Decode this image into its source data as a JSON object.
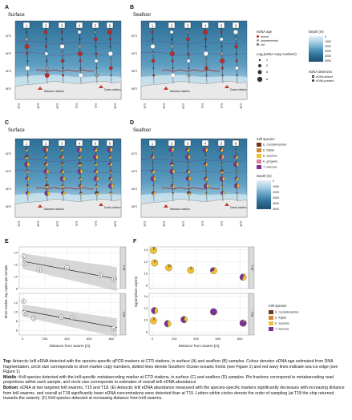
{
  "top": {
    "A": {
      "letter": "A",
      "title": "Surface"
    },
    "B": {
      "letter": "B",
      "title": "Seafloor"
    },
    "legend": {
      "age_title": "eDNA age",
      "age_items": [
        "recent",
        "undetermined",
        "old"
      ],
      "size_title": "Log₂(eDNA copy numbers)",
      "size_items": [
        "2",
        "5",
        "8",
        "8"
      ],
      "depth_title": "Depth (m)",
      "depth_ticks": [
        "0",
        "1000",
        "2000",
        "3000",
        "4000",
        "5000"
      ],
      "detect_title": "eDNA detection",
      "detect_items": [
        "eDNA absent",
        "eDNA present"
      ]
    },
    "transects": [
      "1",
      "2",
      "3",
      "4",
      "5",
      "6"
    ],
    "lat_labels": [
      "62°S",
      "64°S",
      "66°S",
      "68°S"
    ],
    "lon_labels": [
      "55°E",
      "60°E",
      "65°E",
      "70°E",
      "75°E",
      "80°E"
    ],
    "places": {
      "mawson": "Mawson station",
      "davis": "Davis station"
    }
  },
  "middle": {
    "C": {
      "letter": "C",
      "title": "Surface"
    },
    "D": {
      "letter": "D",
      "title": "Seafloor"
    },
    "legend": {
      "species_title": "Krill species",
      "species": [
        "E. crystallorophias",
        "E. frigida",
        "E. superba",
        "E. gregaria",
        "T. macrura"
      ],
      "depth_title": "Depth (m)",
      "depth_ticks": [
        "0",
        "1000",
        "2000",
        "3000",
        "4000",
        "5000"
      ]
    }
  },
  "bottom": {
    "E": {
      "letter": "E",
      "ylabel": "Short marker, log copies per sample",
      "xlabel": "Distance from swarm [m]",
      "facets": [
        "T15",
        "T18"
      ]
    },
    "F": {
      "letter": "F",
      "ylabel": "log(amplicon copies)",
      "xlabel": "Distance from swarm [m]",
      "facets": [
        "T15",
        "T18"
      ],
      "legend_title": "Krill species",
      "species": [
        "E. crystallorophias",
        "E. frigida",
        "E. superba",
        "T. macrura"
      ]
    }
  },
  "colors": {
    "sea_deep": "#2d6f96",
    "sea_mid": "#5b9cc0",
    "sea_light": "#a5cde0",
    "land": "#e9e9e9",
    "front": "#8b2c8e",
    "ice": "#b31b1b",
    "recent": "#c62828",
    "undetermined": "#9a9a9a",
    "old": "#ffffff",
    "sp_crystallorophias": "#6b3a1e",
    "sp_frigida": "#d48a2f",
    "sp_superba": "#f1c232",
    "sp_gregaria": "#e07b9b",
    "sp_macrura": "#7b3294"
  },
  "chart_data": [
    {
      "panel": "E",
      "type": "scatter",
      "xlabel": "Distance from swarm [m]",
      "ylabel": "Short marker, log copies per sample",
      "facets": [
        {
          "name": "T15",
          "ylim": [
            8,
            15
          ],
          "yticks": [
            8,
            10,
            12,
            14
          ],
          "points": [
            {
              "x": 10,
              "y": 13.4,
              "label": "1"
            },
            {
              "x": 15,
              "y": 12.2,
              "label": "2"
            },
            {
              "x": 150,
              "y": 11.1,
              "label": "3"
            },
            {
              "x": 400,
              "y": 11.5,
              "label": "4"
            },
            {
              "x": 700,
              "y": 10.2,
              "label": "5"
            },
            {
              "x": 820,
              "y": 9.6,
              "label": "6"
            }
          ],
          "trend": [
            [
              0,
              12.6
            ],
            [
              850,
              9.6
            ]
          ]
        },
        {
          "name": "T18",
          "ylim": [
            5,
            14
          ],
          "yticks": [
            6,
            8,
            10,
            12
          ],
          "points": [
            {
              "x": 10,
              "y": 12.3,
              "label": "1"
            },
            {
              "x": 20,
              "y": 9.8,
              "label": "2"
            },
            {
              "x": 100,
              "y": 8.6,
              "label": "3"
            },
            {
              "x": 350,
              "y": 8.9,
              "label": "4"
            },
            {
              "x": 450,
              "y": 8.8,
              "label": "5"
            },
            {
              "x": 820,
              "y": 6.4,
              "label": "6"
            }
          ],
          "trend": [
            [
              0,
              10.3
            ],
            [
              850,
              6.6
            ]
          ]
        }
      ],
      "xticks": [
        0,
        200,
        400,
        600,
        800
      ],
      "xlim": [
        -30,
        880
      ]
    },
    {
      "panel": "F",
      "type": "scatter",
      "xlabel": "Distance from swarm [m]",
      "ylabel": "log(amplicon copies)",
      "series": [
        "E. crystallorophias",
        "E. frigida",
        "E. superba",
        "T. macrura"
      ],
      "facets": [
        {
          "name": "T15",
          "ylim": [
            7.5,
            14.5
          ],
          "yticks": [
            8,
            10,
            12,
            14
          ],
          "points": [
            {
              "x": 10,
              "y": 13.9,
              "mix": [
                0,
                0.1,
                0.9,
                0
              ]
            },
            {
              "x": 20,
              "y": 11.8,
              "mix": [
                0,
                0.1,
                0.9,
                0
              ]
            },
            {
              "x": 150,
              "y": 11.0,
              "mix": [
                0,
                0.15,
                0.85,
                0
              ]
            },
            {
              "x": 350,
              "y": 10.6,
              "mix": [
                0,
                0.1,
                0.9,
                0
              ]
            },
            {
              "x": 560,
              "y": 10.5,
              "mix": [
                0,
                0.1,
                0.6,
                0.3
              ]
            },
            {
              "x": 830,
              "y": 9.4,
              "mix": [
                0,
                0.1,
                0.45,
                0.45
              ]
            }
          ]
        },
        {
          "name": "T18",
          "ylim": [
            7.5,
            14.5
          ],
          "yticks": [
            8,
            10,
            12,
            14
          ],
          "points": [
            {
              "x": 10,
              "y": 9.9,
              "mix": [
                0,
                0.1,
                0.9,
                0
              ]
            },
            {
              "x": 20,
              "y": 11.6,
              "mix": [
                0,
                0.05,
                0.45,
                0.5
              ]
            },
            {
              "x": 140,
              "y": 9.4,
              "mix": [
                0,
                0,
                0.5,
                0.5
              ]
            },
            {
              "x": 290,
              "y": 10.1,
              "mix": [
                0,
                0.05,
                0.35,
                0.6
              ]
            },
            {
              "x": 560,
              "y": 11.4,
              "mix": [
                0,
                0,
                0,
                1
              ]
            },
            {
              "x": 830,
              "y": 9.5,
              "mix": [
                0,
                0,
                0.1,
                0.9
              ]
            }
          ]
        }
      ],
      "xticks": [
        0,
        200,
        400,
        600,
        800
      ],
      "xlim": [
        -30,
        880
      ]
    }
  ],
  "caption": {
    "top_label": "Top",
    "top_text": ": Antarctic krill eDNA detected with the species-specific qPCR markers at CTD stations, in surface (A) and seafloor (B) samples. Colour denotes eDNA age estimated from DNA fragmentation, circle size corresponds to short marker copy numbers, dotted lines denote Southern Ocean oceanic fronts (see Figure 1) and red wavy lines indicate sea ice edge (see Figure 1)",
    "middle_label": "Middle",
    "middle_text": ": Krill species detected with the krill-specific metabarcoding marker at CTD stations, in surface (C) and seafloor (D) samples. Pie fractions correspond to metabarcoding read proportions within each sample, and circle size corresponds to estimates of overall krill eDNA abundance",
    "bottom_label": "Bottom",
    "bottom_text": ": eDNA at two targeted krill swarms, T15 and T18. (E) Antarctic krill eDNA abundance measured with the species-specific markers significantly decreases with increasing distance from krill swarms, and overall at T18 significantly lower eDNA concentrations were detected than at T15. Letters within circles denote the order of sampling (at T18 the ship returned towards the swarm). (F) Krill species detected at increasing distance from krill swarms."
  }
}
